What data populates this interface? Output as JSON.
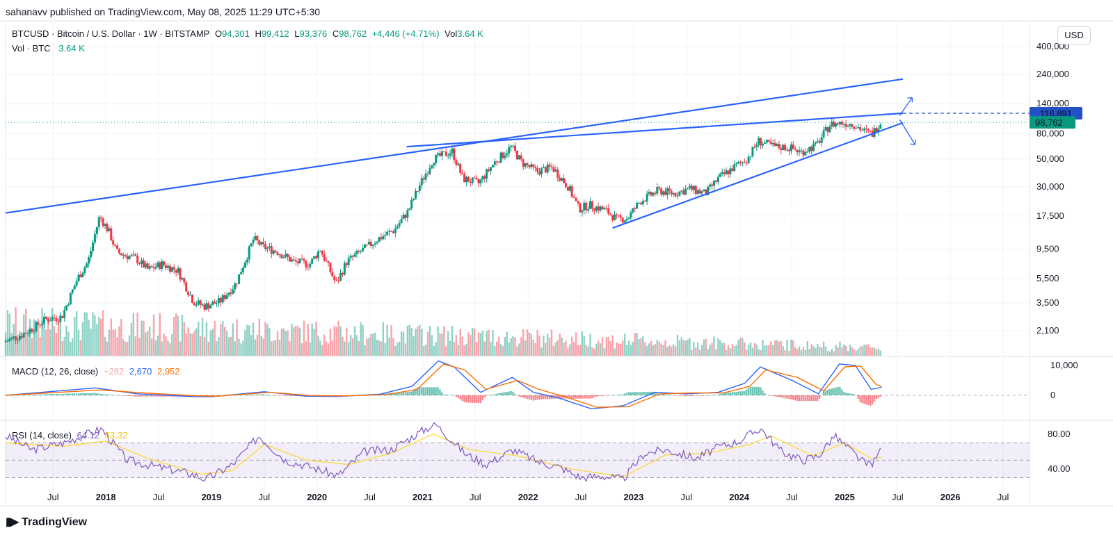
{
  "header": {
    "publisher_line": "sahanavv published on TradingView.com, May 08, 2025 11:29 UTC+5:30"
  },
  "legend": {
    "symbol": "BTCUSD · Bitcoin / U.S. Dollar · 1W · BITSTAMP",
    "open_label": "O",
    "open_value": "94,301",
    "high_label": "H",
    "high_value": "99,412",
    "low_label": "L",
    "low_value": "93,376",
    "close_label": "C",
    "close_value": "98,762",
    "change": "+4,446 (+4.71%)",
    "vol_label": "Vol",
    "vol_value": "3.64 K",
    "vol_line_label": "Vol · BTC",
    "vol_line_value": "3.64 K"
  },
  "currency": "USD",
  "macd_legend": {
    "label": "MACD (12, 26, close)",
    "hist": "−282",
    "macd": "2,670",
    "signal": "2,952"
  },
  "rsi_legend": {
    "label": "RSI (14, close)",
    "rsi": "64.12",
    "ma": "53.32"
  },
  "footer": {
    "brand": "TradingView"
  },
  "colors": {
    "up": "#089981",
    "down": "#f23645",
    "trendline": "#2962ff",
    "macd_line": "#2962ff",
    "signal_line": "#ff6d00",
    "rsi_line": "#7e57c2",
    "rsi_ma": "#fdd835",
    "price_badge": "#089981",
    "target_badge": "#2151c4"
  },
  "chart_data": {
    "type": "candlestick",
    "symbol": "BTCUSD",
    "interval": "1W",
    "scale": "log",
    "price_axis": {
      "ticks": [
        "400,000",
        "240,000",
        "140,000",
        "80,000",
        "50,000",
        "30,000",
        "17,500",
        "9,500",
        "5,500",
        "3,500",
        "2,100"
      ],
      "tick_values": [
        400000,
        240000,
        140000,
        80000,
        50000,
        30000,
        17500,
        9500,
        5500,
        3500,
        2100
      ]
    },
    "time_axis": {
      "labels": [
        "Jul",
        "2018",
        "Jul",
        "2019",
        "Jul",
        "2020",
        "Jul",
        "2021",
        "Jul",
        "2022",
        "Jul",
        "2023",
        "Jul",
        "2024",
        "Jul",
        "2025",
        "Jul",
        "2026",
        "Jul"
      ],
      "bold": [
        false,
        true,
        false,
        true,
        false,
        true,
        false,
        true,
        false,
        true,
        false,
        true,
        false,
        true,
        false,
        true,
        false,
        true,
        false
      ],
      "dates": [
        2017.5,
        2018.0,
        2018.5,
        2019.0,
        2019.5,
        2020.0,
        2020.5,
        2021.0,
        2021.5,
        2022.0,
        2022.5,
        2023.0,
        2023.5,
        2024.0,
        2024.5,
        2025.0,
        2025.5,
        2026.0,
        2026.5
      ],
      "range": [
        2017.05,
        2026.75
      ]
    },
    "price_path": [
      [
        2017.05,
        1700
      ],
      [
        2017.25,
        2000
      ],
      [
        2017.45,
        2600
      ],
      [
        2017.6,
        2700
      ],
      [
        2017.75,
        5500
      ],
      [
        2017.85,
        7500
      ],
      [
        2017.96,
        17500
      ],
      [
        2018.05,
        13000
      ],
      [
        2018.12,
        9000
      ],
      [
        2018.2,
        8500
      ],
      [
        2018.3,
        8000
      ],
      [
        2018.42,
        6500
      ],
      [
        2018.55,
        7200
      ],
      [
        2018.7,
        6400
      ],
      [
        2018.85,
        3600
      ],
      [
        2018.95,
        3300
      ],
      [
        2019.1,
        3600
      ],
      [
        2019.25,
        5000
      ],
      [
        2019.42,
        11500
      ],
      [
        2019.5,
        10000
      ],
      [
        2019.65,
        9000
      ],
      [
        2019.8,
        7500
      ],
      [
        2019.95,
        7200
      ],
      [
        2020.05,
        9500
      ],
      [
        2020.2,
        5000
      ],
      [
        2020.3,
        7500
      ],
      [
        2020.45,
        9300
      ],
      [
        2020.6,
        11500
      ],
      [
        2020.75,
        13500
      ],
      [
        2020.88,
        19000
      ],
      [
        2021.0,
        32000
      ],
      [
        2021.12,
        50000
      ],
      [
        2021.3,
        58000
      ],
      [
        2021.4,
        35000
      ],
      [
        2021.55,
        32000
      ],
      [
        2021.7,
        47000
      ],
      [
        2021.86,
        63000
      ],
      [
        2021.96,
        47000
      ],
      [
        2022.1,
        40000
      ],
      [
        2022.25,
        43000
      ],
      [
        2022.4,
        30000
      ],
      [
        2022.5,
        20000
      ],
      [
        2022.6,
        21500
      ],
      [
        2022.75,
        19500
      ],
      [
        2022.86,
        16500
      ],
      [
        2022.96,
        16800
      ],
      [
        2023.08,
        23000
      ],
      [
        2023.25,
        28000
      ],
      [
        2023.4,
        26500
      ],
      [
        2023.55,
        29000
      ],
      [
        2023.7,
        26500
      ],
      [
        2023.82,
        35000
      ],
      [
        2023.95,
        42000
      ],
      [
        2024.1,
        51000
      ],
      [
        2024.2,
        70000
      ],
      [
        2024.35,
        63000
      ],
      [
        2024.5,
        62000
      ],
      [
        2024.6,
        57000
      ],
      [
        2024.75,
        65000
      ],
      [
        2024.88,
        95000
      ],
      [
        2025.0,
        98000
      ],
      [
        2025.1,
        96000
      ],
      [
        2025.2,
        84000
      ],
      [
        2025.28,
        80000
      ],
      [
        2025.35,
        98762
      ]
    ],
    "volume_bars": {
      "approx_btc_k_peak": "2017–2018 highest; declining thereafter",
      "last": "3.64 K"
    },
    "trendlines": [
      {
        "name": "upper-wide",
        "from": [
          2017.05,
          18500
        ],
        "to": [
          2025.55,
          220000
        ]
      },
      {
        "name": "upper-resistance",
        "from": [
          2020.85,
          63000
        ],
        "to": [
          2025.55,
          116891
        ]
      },
      {
        "name": "lower-support",
        "from": [
          2022.8,
          14000
        ],
        "to": [
          2025.55,
          98000
        ]
      }
    ],
    "markers": {
      "current_price": "98,762",
      "target_level": "116,891"
    },
    "macd": {
      "label": "MACD (12, 26, close)",
      "axis_ticks": [
        "10,000",
        "0"
      ],
      "tick_values": [
        10000,
        0
      ],
      "macd_path": [
        [
          2017.05,
          0
        ],
        [
          2017.9,
          2500
        ],
        [
          2018.3,
          500
        ],
        [
          2018.8,
          -400
        ],
        [
          2019.0,
          -500
        ],
        [
          2019.5,
          1200
        ],
        [
          2019.9,
          -300
        ],
        [
          2020.2,
          -400
        ],
        [
          2020.6,
          400
        ],
        [
          2020.9,
          3000
        ],
        [
          2021.15,
          11500
        ],
        [
          2021.3,
          9500
        ],
        [
          2021.55,
          1000
        ],
        [
          2021.85,
          6000
        ],
        [
          2022.05,
          1000
        ],
        [
          2022.3,
          -1000
        ],
        [
          2022.6,
          -4500
        ],
        [
          2022.9,
          -3500
        ],
        [
          2023.2,
          1000
        ],
        [
          2023.5,
          500
        ],
        [
          2023.8,
          1000
        ],
        [
          2024.05,
          4000
        ],
        [
          2024.2,
          9500
        ],
        [
          2024.5,
          5000
        ],
        [
          2024.75,
          500
        ],
        [
          2024.95,
          10500
        ],
        [
          2025.1,
          10000
        ],
        [
          2025.25,
          2000
        ],
        [
          2025.35,
          2670
        ]
      ],
      "signal_path": [
        [
          2017.05,
          0
        ],
        [
          2017.95,
          1800
        ],
        [
          2018.4,
          700
        ],
        [
          2018.9,
          -200
        ],
        [
          2019.05,
          -300
        ],
        [
          2019.55,
          1000
        ],
        [
          2019.95,
          -100
        ],
        [
          2020.25,
          -200
        ],
        [
          2020.65,
          200
        ],
        [
          2020.95,
          2000
        ],
        [
          2021.2,
          10500
        ],
        [
          2021.4,
          8500
        ],
        [
          2021.6,
          2000
        ],
        [
          2021.9,
          5000
        ],
        [
          2022.1,
          2000
        ],
        [
          2022.35,
          -500
        ],
        [
          2022.65,
          -4000
        ],
        [
          2022.95,
          -3800
        ],
        [
          2023.25,
          500
        ],
        [
          2023.55,
          800
        ],
        [
          2023.85,
          800
        ],
        [
          2024.1,
          3000
        ],
        [
          2024.25,
          8500
        ],
        [
          2024.55,
          6000
        ],
        [
          2024.8,
          1500
        ],
        [
          2025.0,
          9500
        ],
        [
          2025.15,
          9800
        ],
        [
          2025.3,
          3500
        ],
        [
          2025.35,
          2952
        ]
      ],
      "histogram_last": -282
    },
    "rsi": {
      "label": "RSI (14, close)",
      "axis_ticks": [
        "80.00",
        "40.00"
      ],
      "tick_values": [
        80,
        40
      ],
      "bands": [
        70,
        50,
        30
      ],
      "range": [
        20,
        95
      ],
      "rsi_path": [
        [
          2017.05,
          78
        ],
        [
          2017.3,
          62
        ],
        [
          2017.6,
          70
        ],
        [
          2017.96,
          86
        ],
        [
          2018.2,
          50
        ],
        [
          2018.5,
          42
        ],
        [
          2018.8,
          35
        ],
        [
          2018.95,
          28
        ],
        [
          2019.2,
          45
        ],
        [
          2019.45,
          78
        ],
        [
          2019.7,
          50
        ],
        [
          2019.95,
          42
        ],
        [
          2020.2,
          32
        ],
        [
          2020.45,
          60
        ],
        [
          2020.7,
          62
        ],
        [
          2021.0,
          84
        ],
        [
          2021.12,
          92
        ],
        [
          2021.4,
          58
        ],
        [
          2021.6,
          45
        ],
        [
          2021.86,
          62
        ],
        [
          2022.1,
          48
        ],
        [
          2022.3,
          42
        ],
        [
          2022.5,
          30
        ],
        [
          2022.7,
          32
        ],
        [
          2022.9,
          28
        ],
        [
          2023.1,
          58
        ],
        [
          2023.3,
          62
        ],
        [
          2023.6,
          52
        ],
        [
          2023.8,
          65
        ],
        [
          2024.0,
          72
        ],
        [
          2024.2,
          87
        ],
        [
          2024.4,
          60
        ],
        [
          2024.6,
          50
        ],
        [
          2024.75,
          55
        ],
        [
          2024.9,
          78
        ],
        [
          2025.05,
          62
        ],
        [
          2025.2,
          45
        ],
        [
          2025.28,
          48
        ],
        [
          2025.35,
          64.12
        ]
      ],
      "ma_path": [
        [
          2017.05,
          70
        ],
        [
          2017.6,
          66
        ],
        [
          2018.0,
          72
        ],
        [
          2018.4,
          52
        ],
        [
          2018.9,
          34
        ],
        [
          2019.2,
          38
        ],
        [
          2019.5,
          68
        ],
        [
          2019.9,
          50
        ],
        [
          2020.3,
          45
        ],
        [
          2020.7,
          58
        ],
        [
          2021.1,
          80
        ],
        [
          2021.45,
          62
        ],
        [
          2021.9,
          55
        ],
        [
          2022.4,
          40
        ],
        [
          2022.9,
          31
        ],
        [
          2023.3,
          56
        ],
        [
          2023.7,
          58
        ],
        [
          2024.1,
          68
        ],
        [
          2024.3,
          78
        ],
        [
          2024.7,
          55
        ],
        [
          2025.0,
          70
        ],
        [
          2025.25,
          52
        ],
        [
          2025.35,
          53.32
        ]
      ]
    }
  }
}
